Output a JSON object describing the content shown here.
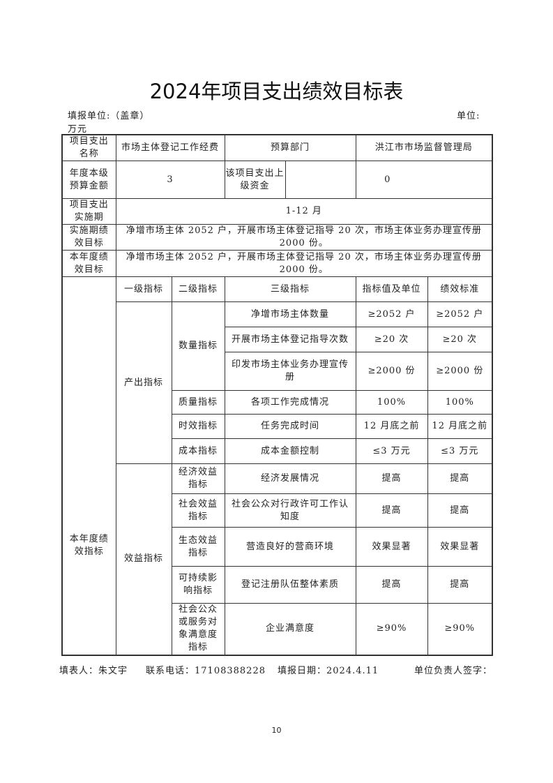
{
  "title": "2024年项目支出绩效目标表",
  "header": {
    "unit_label": "填报单位:（盖章）",
    "currency_label": "单位:",
    "currency_value": "万元"
  },
  "info": {
    "project_name_label": "项目支出名称",
    "project_name": "市场主体登记工作经费",
    "dept_label": "预算部门",
    "dept": "洪江市市场监督管理局",
    "budget_label": "年度本级预算金额",
    "budget": "3",
    "upper_fund_label": "该项目支出上级资金",
    "upper_fund": "0",
    "period_label": "项目支出实施期",
    "period": "1-12 月",
    "period_goal_label": "实施期绩效目标",
    "period_goal": "净增市场主体 2052 户，开展市场主体登记指导 20 次，市场主体业务办理宣传册 2000 份。",
    "year_goal_label": "本年度绩效目标",
    "year_goal": "净增市场主体 2052 户，开展市场主体登记指导 20 次，市场主体业务办理宣传册 2000 份。"
  },
  "indicators": {
    "section_label": "本年度绩效指标",
    "headers": [
      "一级指标",
      "二级指标",
      "三级指标",
      "指标值及单位",
      "绩效标准"
    ],
    "output_label": "产出指标",
    "quantity_label": "数量指标",
    "benefit_label": "效益指标",
    "rows": [
      {
        "l2": "数量指标",
        "l3": "净增市场主体数量",
        "value": "≥2052 户",
        "standard": "≥2052 户"
      },
      {
        "l2": "数量指标",
        "l3": "开展市场主体登记指导次数",
        "value": "≥20 次",
        "standard": "≥20 次"
      },
      {
        "l2": "数量指标",
        "l3": "印发市场主体业务办理宣传册",
        "value": "≥2000 份",
        "standard": "≥2000 份"
      },
      {
        "l2": "质量指标",
        "l3": "各项工作完成情况",
        "value": "100%",
        "standard": "100%"
      },
      {
        "l2": "时效指标",
        "l3": "任务完成时间",
        "value": "12 月底之前",
        "standard": "12 月底之前"
      },
      {
        "l2": "成本指标",
        "l3": "成本金额控制",
        "value": "≤3 万元",
        "standard": "≤3 万元"
      },
      {
        "l2": "经济效益指标",
        "l3": "经济发展情况",
        "value": "提高",
        "standard": "提高"
      },
      {
        "l2": "社会效益指标",
        "l3": "社会公众对行政许可工作认知度",
        "value": "提高",
        "standard": "提高"
      },
      {
        "l2": "生态效益指标",
        "l3": "营造良好的营商环境",
        "value": "效果显著",
        "standard": "效果显著"
      },
      {
        "l2": "可持续影响指标",
        "l3": "登记注册队伍整体素质",
        "value": "提高",
        "standard": "提高"
      },
      {
        "l2": "社会公众或服务对象满意度指标",
        "l3": "企业满意度",
        "value": "≥90%",
        "standard": "≥90%"
      }
    ]
  },
  "footer": {
    "filler": "填表人：朱文宇",
    "phone": "联系电话：17108388228",
    "date": "填报日期：2024.4.11",
    "signature": "单位负责人签字："
  },
  "page_number": "10"
}
